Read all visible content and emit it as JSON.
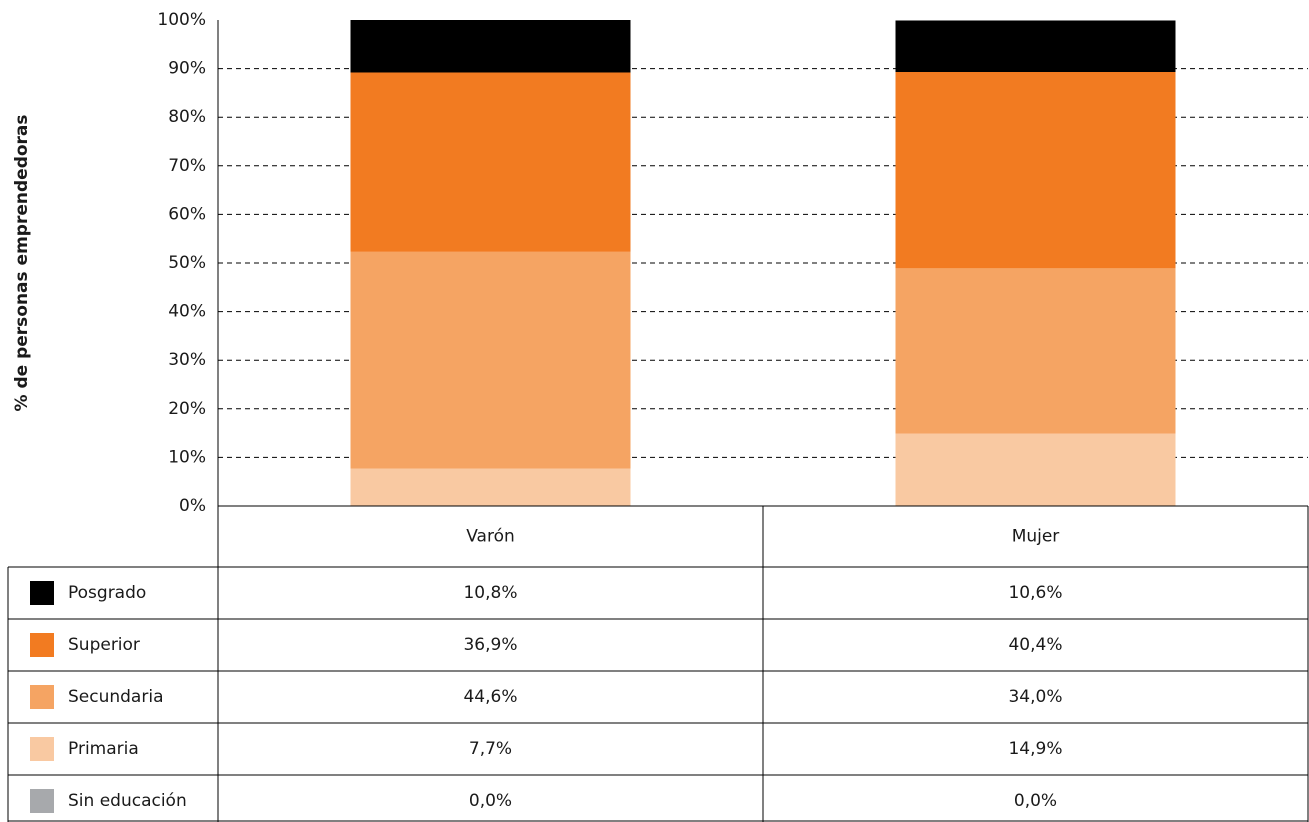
{
  "chart_data": {
    "type": "stacked_bar",
    "y_label": "% de personas emprendedoras",
    "categories": [
      "Varón",
      "Mujer"
    ],
    "series": [
      {
        "name": "Posgrado",
        "color": "#000000",
        "values": [
          10.8,
          10.6
        ],
        "value_labels": [
          "10,8%",
          "10,6%"
        ]
      },
      {
        "name": "Superior",
        "color": "#f27b21",
        "values": [
          36.9,
          40.4
        ],
        "value_labels": [
          "36,9%",
          "40,4%"
        ]
      },
      {
        "name": "Secundaria",
        "color": "#f5a463",
        "values": [
          44.6,
          34.0
        ],
        "value_labels": [
          "44,6%",
          "34,0%"
        ]
      },
      {
        "name": "Primaria",
        "color": "#f9c9a2",
        "values": [
          7.7,
          14.9
        ],
        "value_labels": [
          "7,7%",
          "14,9%"
        ]
      },
      {
        "name": "Sin educación",
        "color": "#a7a9ac",
        "values": [
          0.0,
          0.0
        ],
        "value_labels": [
          "0,0%",
          "0,0%"
        ]
      }
    ],
    "ylim": [
      0,
      100
    ],
    "yticks": [
      {
        "value": 0,
        "label": "0%"
      },
      {
        "value": 10,
        "label": "10%"
      },
      {
        "value": 20,
        "label": "20%"
      },
      {
        "value": 30,
        "label": "30%"
      },
      {
        "value": 40,
        "label": "40%"
      },
      {
        "value": 50,
        "label": "50%"
      },
      {
        "value": 60,
        "label": "60%"
      },
      {
        "value": 70,
        "label": "70%"
      },
      {
        "value": 80,
        "label": "80%"
      },
      {
        "value": 90,
        "label": "90%"
      },
      {
        "value": 100,
        "label": "100%"
      }
    ],
    "grid": true
  }
}
